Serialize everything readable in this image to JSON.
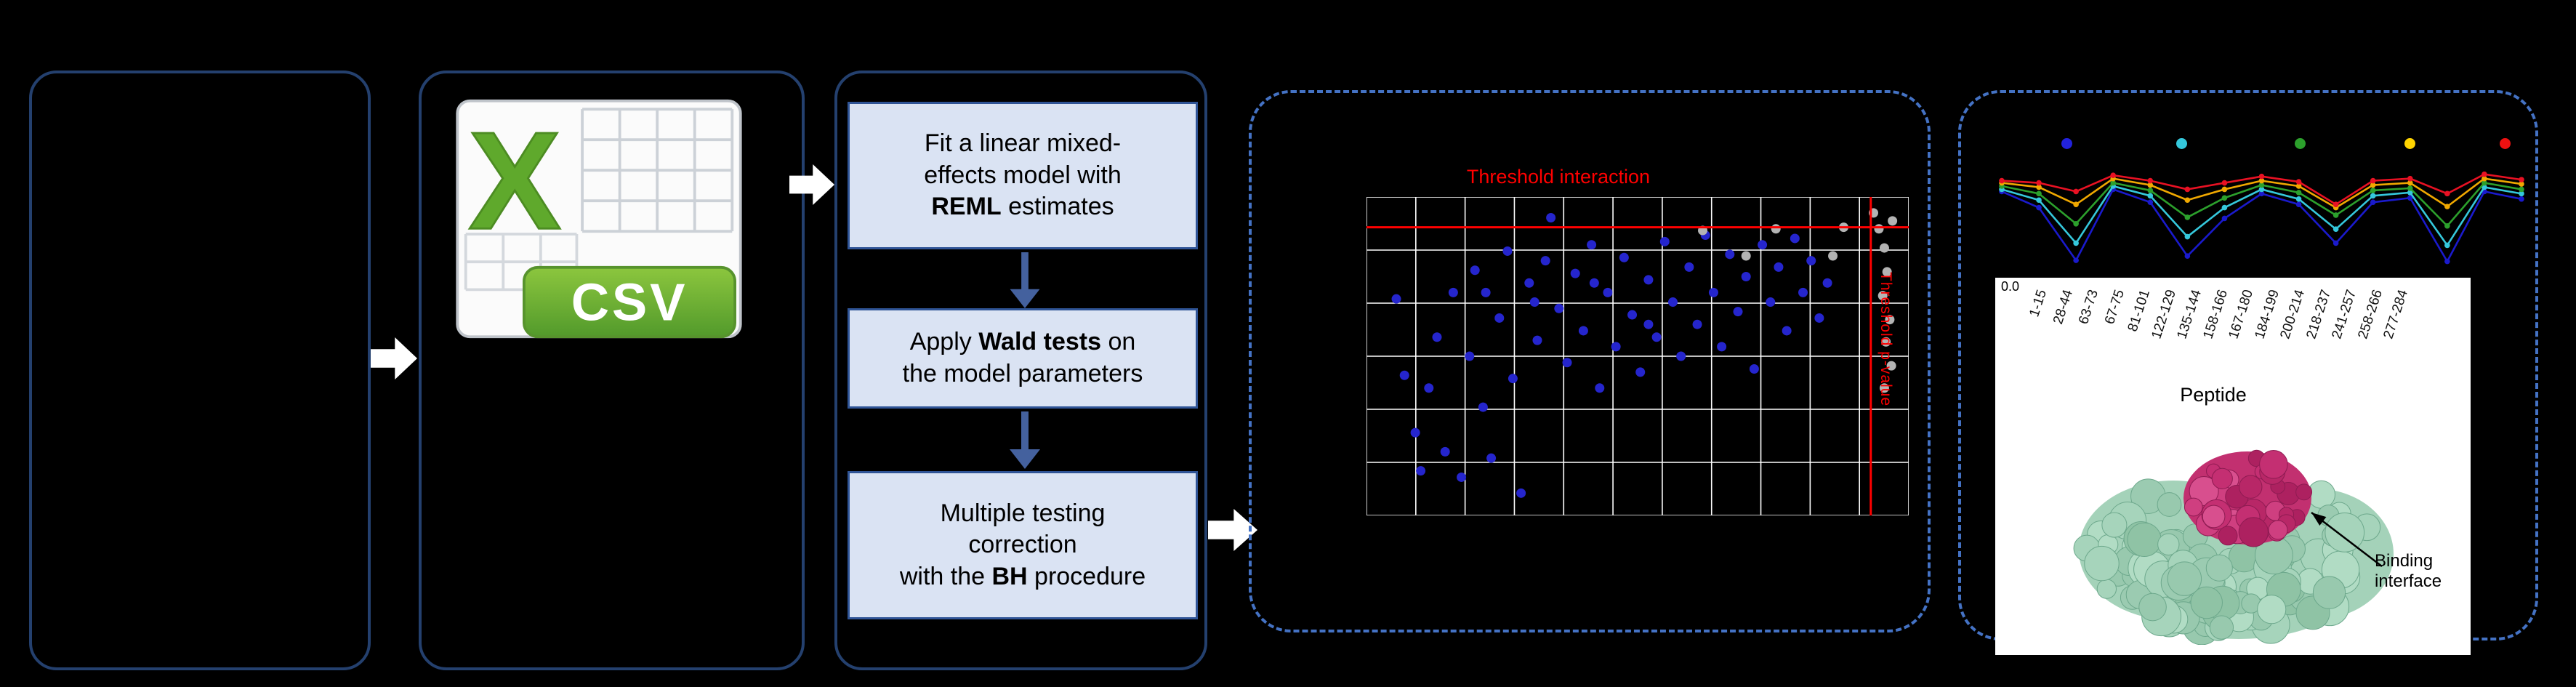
{
  "pipeline": {
    "box1": {
      "l1": "Fit a linear mixed-",
      "l2": "effects model with",
      "l3_bold": "REML",
      "l3_rest": " estimates"
    },
    "box2": {
      "l1_pre": "Apply ",
      "l1_bold": "Wald tests",
      "l1_post": " on",
      "l2": "the model parameters"
    },
    "box3": {
      "l1": "Multiple testing",
      "l2": "correction",
      "l3_pre": "with the ",
      "l3_bold": "BH",
      "l3_post": " procedure"
    }
  },
  "csv": {
    "letter": "X",
    "label": "CSV"
  },
  "scatter": {
    "title": "Threshold interaction",
    "side_label": "Threshold p-value"
  },
  "profile": {
    "ytick": "0.0",
    "xlabel": "Peptide",
    "annotation_line1": "Binding",
    "annotation_line2": "interface"
  },
  "icons": [
    "csv-file-icon",
    "right-arrow-icon",
    "down-arrow-icon",
    "annotation-arrow-icon"
  ],
  "colors": {
    "threshold": "#ff0000",
    "panel_border": "#24406e",
    "dashed_border": "#4472c4",
    "box_fill": "#dae3f3",
    "box_border": "#2f5496",
    "significant_point": "#2525cd",
    "nonsignificant_point": "#b3b3b3",
    "protein_surface": "#a4d2b9",
    "binding_region": "#c23070"
  },
  "chart_data": [
    {
      "type": "scatter",
      "title": "Threshold interaction",
      "side_label": "Threshold p-value",
      "grid": {
        "cols": 11,
        "rows": 6
      },
      "threshold_h": 0.095,
      "threshold_v": 0.93,
      "threshold_color": "#ff0000",
      "series": [
        {
          "name": "significant-peptides",
          "color": "#2525cd",
          "points": [
            [
              0.055,
              0.32
            ],
            [
              0.07,
              0.56
            ],
            [
              0.09,
              0.74
            ],
            [
              0.1,
              0.86
            ],
            [
              0.115,
              0.6
            ],
            [
              0.13,
              0.44
            ],
            [
              0.145,
              0.8
            ],
            [
              0.16,
              0.3
            ],
            [
              0.175,
              0.88
            ],
            [
              0.19,
              0.5
            ],
            [
              0.2,
              0.23
            ],
            [
              0.215,
              0.66
            ],
            [
              0.23,
              0.82
            ],
            [
              0.245,
              0.38
            ],
            [
              0.26,
              0.17
            ],
            [
              0.27,
              0.57
            ],
            [
              0.285,
              0.93
            ],
            [
              0.3,
              0.27
            ],
            [
              0.315,
              0.45
            ],
            [
              0.33,
              0.2
            ],
            [
              0.34,
              0.065
            ],
            [
              0.355,
              0.35
            ],
            [
              0.37,
              0.52
            ],
            [
              0.385,
              0.24
            ],
            [
              0.4,
              0.42
            ],
            [
              0.415,
              0.15
            ],
            [
              0.43,
              0.6
            ],
            [
              0.445,
              0.3
            ],
            [
              0.46,
              0.47
            ],
            [
              0.475,
              0.19
            ],
            [
              0.49,
              0.37
            ],
            [
              0.505,
              0.55
            ],
            [
              0.52,
              0.26
            ],
            [
              0.535,
              0.44
            ],
            [
              0.55,
              0.14
            ],
            [
              0.565,
              0.33
            ],
            [
              0.58,
              0.5
            ],
            [
              0.595,
              0.22
            ],
            [
              0.61,
              0.4
            ],
            [
              0.625,
              0.12
            ],
            [
              0.64,
              0.3
            ],
            [
              0.655,
              0.47
            ],
            [
              0.67,
              0.18
            ],
            [
              0.685,
              0.36
            ],
            [
              0.7,
              0.25
            ],
            [
              0.715,
              0.54
            ],
            [
              0.73,
              0.15
            ],
            [
              0.745,
              0.33
            ],
            [
              0.76,
              0.22
            ],
            [
              0.775,
              0.42
            ],
            [
              0.79,
              0.13
            ],
            [
              0.805,
              0.3
            ],
            [
              0.82,
              0.2
            ],
            [
              0.835,
              0.38
            ],
            [
              0.85,
              0.27
            ],
            [
              0.22,
              0.3
            ],
            [
              0.31,
              0.33
            ],
            [
              0.42,
              0.27
            ],
            [
              0.52,
              0.4
            ]
          ]
        },
        {
          "name": "non-significant-peptides",
          "color": "#b3b3b3",
          "points": [
            [
              0.62,
              0.105
            ],
            [
              0.7,
              0.185
            ],
            [
              0.755,
              0.1
            ],
            [
              0.86,
              0.185
            ],
            [
              0.88,
              0.095
            ],
            [
              0.935,
              0.05
            ],
            [
              0.945,
              0.1
            ],
            [
              0.955,
              0.16
            ],
            [
              0.96,
              0.235
            ],
            [
              0.952,
              0.31
            ],
            [
              0.965,
              0.385
            ],
            [
              0.958,
              0.455
            ],
            [
              0.968,
              0.53
            ],
            [
              0.955,
              0.6
            ],
            [
              0.97,
              0.075
            ]
          ]
        }
      ]
    },
    {
      "type": "line",
      "categories": [
        "1-15",
        "28-44",
        "63-73",
        "67-75",
        "81-101",
        "122-129",
        "135-144",
        "158-166",
        "167-180",
        "184-199",
        "200-214",
        "218-237",
        "241-257",
        "258-266",
        "277-284"
      ],
      "xlabel": "Peptide",
      "y_axis_visible_tick": "0.0",
      "legend_colors": [
        "#2222dd",
        "#35c8dc",
        "#2ca02c",
        "#ffd400",
        "#ee1111"
      ],
      "series": [
        {
          "name": "series-blue",
          "color": "#1a1acc",
          "values": [
            0.7,
            0.55,
            0.06,
            0.72,
            0.6,
            0.1,
            0.45,
            0.68,
            0.58,
            0.22,
            0.6,
            0.64,
            0.05,
            0.7,
            0.63
          ]
        },
        {
          "name": "series-cyan",
          "color": "#35c8dc",
          "values": [
            0.72,
            0.62,
            0.22,
            0.75,
            0.66,
            0.28,
            0.55,
            0.72,
            0.63,
            0.35,
            0.66,
            0.69,
            0.2,
            0.74,
            0.68
          ]
        },
        {
          "name": "series-green",
          "color": "#2ca02c",
          "values": [
            0.75,
            0.68,
            0.4,
            0.78,
            0.71,
            0.46,
            0.64,
            0.76,
            0.69,
            0.48,
            0.71,
            0.73,
            0.38,
            0.78,
            0.72
          ]
        },
        {
          "name": "series-orange",
          "color": "#f0a800",
          "values": [
            0.78,
            0.74,
            0.58,
            0.82,
            0.76,
            0.62,
            0.72,
            0.8,
            0.75,
            0.55,
            0.76,
            0.78,
            0.56,
            0.82,
            0.77
          ]
        },
        {
          "name": "series-red",
          "color": "#e81123",
          "values": [
            0.8,
            0.78,
            0.7,
            0.85,
            0.8,
            0.72,
            0.78,
            0.84,
            0.79,
            0.58,
            0.8,
            0.82,
            0.68,
            0.86,
            0.81
          ]
        }
      ]
    }
  ]
}
